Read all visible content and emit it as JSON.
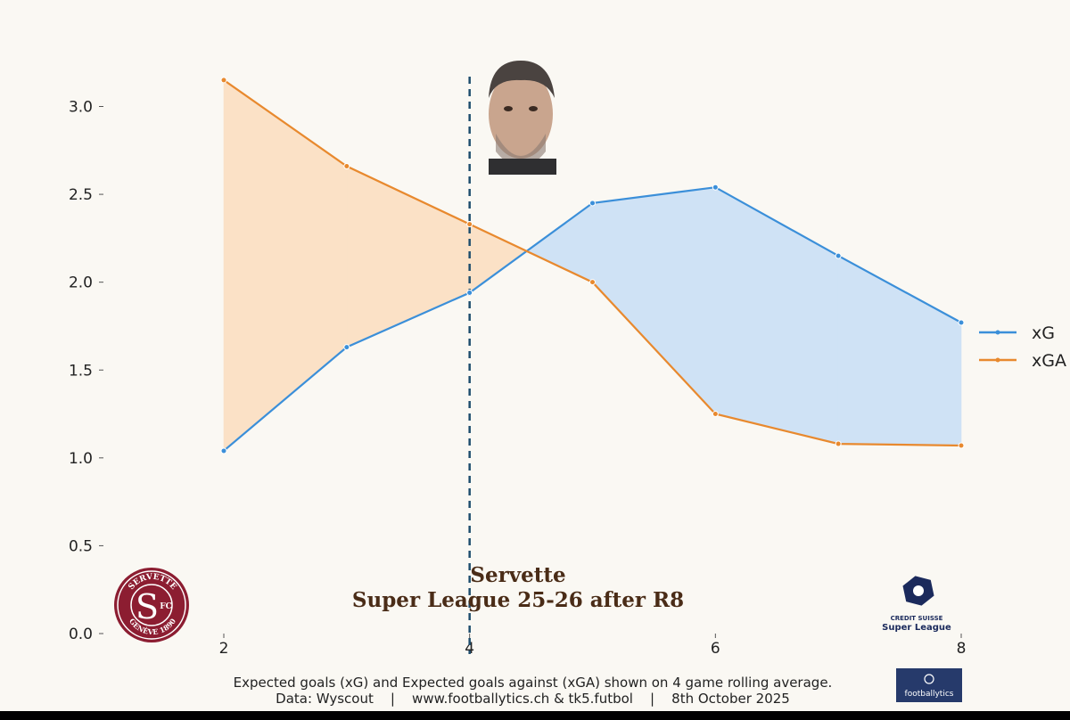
{
  "chart_data": {
    "type": "line",
    "title": "Servette",
    "subtitle": "Super League 25-26 after R8",
    "xlabel": "",
    "ylabel": "",
    "x": [
      2,
      3,
      4,
      5,
      6,
      7,
      8
    ],
    "xlim": [
      2,
      8
    ],
    "ylim": [
      0,
      3.2
    ],
    "xticks": [
      "2",
      "4",
      "6",
      "8"
    ],
    "yticks": [
      "0.0",
      "0.5",
      "1.0",
      "1.5",
      "2.0",
      "2.5",
      "3.0"
    ],
    "series": [
      {
        "name": "xG",
        "color": "#3b8fd9",
        "values": [
          1.04,
          1.63,
          1.94,
          2.45,
          2.54,
          2.15,
          1.77
        ]
      },
      {
        "name": "xGA",
        "color": "#e8892e",
        "values": [
          3.15,
          2.66,
          2.33,
          2.0,
          1.25,
          1.08,
          1.07
        ]
      }
    ],
    "fill_between": {
      "xG_above_color": "#cfe2f5",
      "xGA_above_color": "#fbe1c6"
    },
    "vline": {
      "x": 4,
      "color": "#1f4e6e",
      "style": "dashed"
    },
    "grid": false,
    "legend_position": "right"
  },
  "logos": {
    "club_text_top": "SERVETTE",
    "club_text_bottom": "GENÈVE 1890",
    "club_monogram": "S",
    "club_fc": "FC",
    "league_line1": "CREDIT SUISSE",
    "league_line2": "Super League",
    "brand": "footballytics"
  },
  "footer": {
    "line1": "Expected goals (xG) and Expected goals against (xGA) shown on 4 game rolling average.",
    "line2": "Data: Wyscout    |    www.footballytics.ch & tk5.futbol    |    8th October 2025"
  }
}
